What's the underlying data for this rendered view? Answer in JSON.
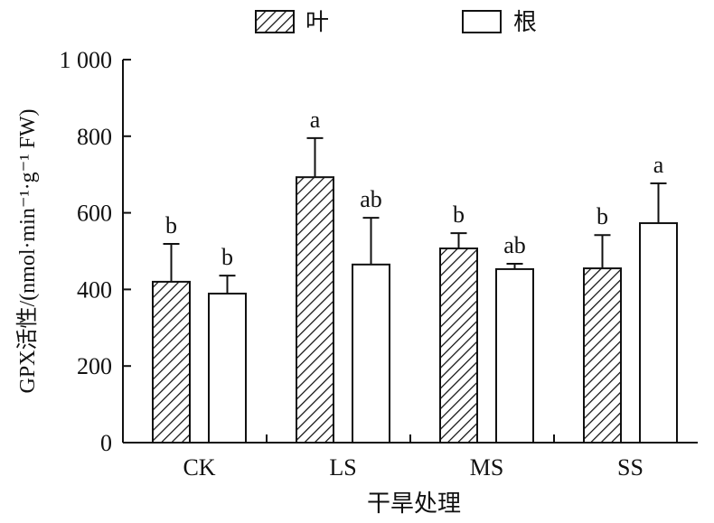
{
  "chart_data": {
    "type": "bar",
    "categories": [
      "CK",
      "LS",
      "MS",
      "SS"
    ],
    "series": [
      {
        "name": "叶",
        "pattern": "hatched",
        "values": [
          420,
          693,
          507,
          455
        ],
        "errors": [
          99,
          102,
          40,
          87
        ],
        "labels": [
          "b",
          "a",
          "b",
          "b"
        ]
      },
      {
        "name": "根",
        "pattern": "white",
        "values": [
          389,
          465,
          453,
          573
        ],
        "errors": [
          47,
          122,
          14,
          104
        ],
        "labels": [
          "b",
          "ab",
          "ab",
          "a"
        ]
      }
    ],
    "xlabel": "干旱处理",
    "ylabel": "GPX活性/(nmol·min⁻¹·g⁻¹ FW)",
    "ylim": [
      0,
      1000
    ],
    "yticks": [
      0,
      200,
      400,
      600,
      800,
      1000
    ],
    "ytick_labels": [
      "0",
      "200",
      "400",
      "600",
      "800",
      "1 000"
    ],
    "legend": "top-center",
    "grid": false
  }
}
